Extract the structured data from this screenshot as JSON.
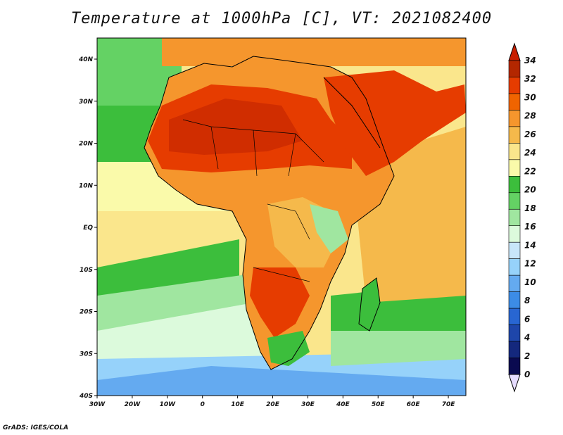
{
  "title": "Temperature at 1000hPa [C], VT: 2021082400",
  "credit": "GrADS: IGES/COLA",
  "map": {
    "lon_labels": [
      "30W",
      "20W",
      "10W",
      "0",
      "10E",
      "20E",
      "30E",
      "40E",
      "50E",
      "60E",
      "70E"
    ],
    "lat_labels": [
      "40N",
      "30N",
      "20N",
      "10N",
      "EQ",
      "10S",
      "20S",
      "30S",
      "40S"
    ]
  },
  "colorbar": {
    "labels": [
      "34",
      "32",
      "30",
      "28",
      "26",
      "24",
      "22",
      "20",
      "18",
      "16",
      "14",
      "12",
      "10",
      "8",
      "6",
      "4",
      "2",
      "0"
    ],
    "colors": [
      "#b32700",
      "#e63c00",
      "#f06400",
      "#f5962d",
      "#f5b94b",
      "#fae68c",
      "#fafaaa",
      "#3cbe3c",
      "#64d264",
      "#a0e6a0",
      "#dcfadc",
      "#c8e6fa",
      "#96d2fa",
      "#64aaf0",
      "#3c8ce6",
      "#2866d2",
      "#1e46aa",
      "#14287d",
      "#0a0a50"
    ],
    "over_color": "#c81e00",
    "under_color": "#e6dcff"
  }
}
